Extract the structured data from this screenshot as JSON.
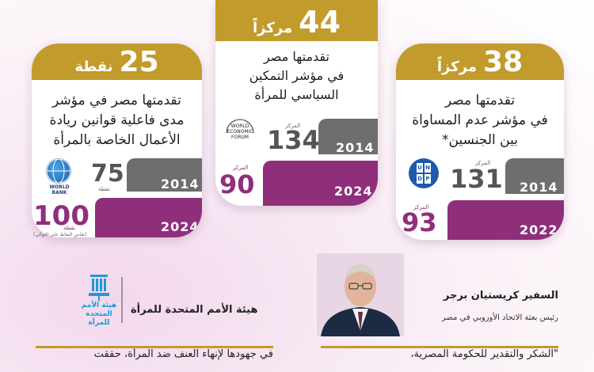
{
  "cards": [
    {
      "number": "25",
      "unit": "نقطة",
      "desc": [
        "تقدمتها مصر في مؤشر",
        "مدى فاعلية قوانين ريادة",
        "الأعمال الخاصة بالمرأة"
      ],
      "logo_name": "world-bank-logo",
      "logo_text": "WORLD BANK",
      "old_year": "2014",
      "old_value": "75",
      "old_unit": "نقطة",
      "new_year": "2024",
      "new_value": "100",
      "new_unit": "نقطة",
      "new_note": "(تقاس النقاط على التوالي)"
    },
    {
      "number": "44",
      "unit": "مركزاً",
      "desc": [
        "تقدمتها مصر",
        "في مؤشر التمكين",
        "السياسي للمرأة"
      ],
      "logo_name": "world-economic-forum-logo",
      "logo_text": "WORLD ECONOMIC FORUM",
      "old_year": "2014",
      "old_value": "134",
      "old_unit": "المركز",
      "new_year": "2024",
      "new_value": "90",
      "new_unit": "المركز"
    },
    {
      "number": "38",
      "unit": "مركزاً",
      "desc": [
        "تقدمتها مصر",
        "في مؤشر عدم المساواة",
        "بين الجنسين*"
      ],
      "logo_name": "undp-logo",
      "logo_text": "UNDP",
      "old_year": "2014",
      "old_value": "131",
      "old_unit": "المركز",
      "new_year": "2022",
      "new_value": "93",
      "new_unit": "المركز"
    }
  ],
  "un_women": {
    "logo_text": "هيئة الأمم المتحدة للمرأة",
    "title": "هيئة الأمم المتحدة للمرأة"
  },
  "ambassador": {
    "name": "السفير كريستيان برجر",
    "role": "رئيس بعثة الاتحاد الأوروبي في مصر"
  },
  "quotes": {
    "left": "في جهودها لإنهاء العنف ضد المرأة، حققت",
    "right": "\"الشكر والتقدير للحكومة المصرية،"
  },
  "colors": {
    "gold": "#c19b2b",
    "purple": "#8f2f7c",
    "gray": "#6e6e6e"
  }
}
